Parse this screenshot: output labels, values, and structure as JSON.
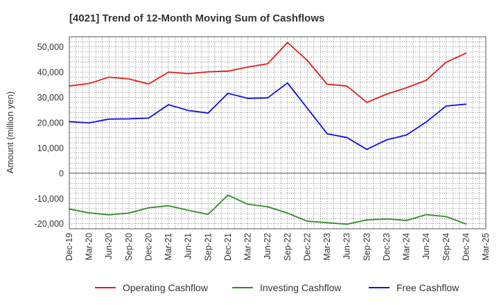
{
  "chart_data": {
    "type": "line",
    "title": "[4021]  Trend of 12-Month Moving Sum of Cashflows",
    "xlabel": "",
    "ylabel": "Amount (million yen)",
    "ylim": [
      -22000,
      54000
    ],
    "yticks": [
      -20000,
      -10000,
      0,
      10000,
      20000,
      30000,
      40000,
      50000
    ],
    "ytick_labels": [
      "-20,000",
      "-10,000",
      "0",
      "10,000",
      "20,000",
      "30,000",
      "40,000",
      "50,000"
    ],
    "x_tick_labels": [
      "Dec-19",
      "Mar-20",
      "Jun-20",
      "Sep-20",
      "Dec-20",
      "Mar-21",
      "Jun-21",
      "Sep-21",
      "Dec-21",
      "Mar-22",
      "Jun-22",
      "Sep-22",
      "Dec-22",
      "Mar-23",
      "Jun-23",
      "Sep-23",
      "Dec-23",
      "Mar-24",
      "Jun-24",
      "Sep-24",
      "Dec-24",
      "Mar-25"
    ],
    "x": [
      "Dec-19",
      "Mar-20",
      "Jun-20",
      "Sep-20",
      "Dec-20",
      "Mar-21",
      "Jun-21",
      "Sep-21",
      "Dec-21",
      "Mar-22",
      "Jun-22",
      "Sep-22",
      "Dec-22",
      "Mar-23",
      "Jun-23",
      "Sep-23",
      "Dec-23",
      "Mar-24",
      "Jun-24",
      "Sep-24",
      "Dec-24"
    ],
    "grid": true,
    "legend_position": "bottom",
    "series": [
      {
        "name": "Operating Cashflow",
        "color": "#e31a1c",
        "values": [
          34500,
          35500,
          38000,
          37300,
          35300,
          40000,
          39400,
          40100,
          40400,
          42000,
          43300,
          51700,
          44600,
          35200,
          34500,
          28000,
          31300,
          33800,
          36800,
          43900,
          47500
        ]
      },
      {
        "name": "Investing Cashflow",
        "color": "#2e8b22",
        "values": [
          -14200,
          -15700,
          -16500,
          -15800,
          -13700,
          -12900,
          -14700,
          -16300,
          -8700,
          -12300,
          -13300,
          -15800,
          -19000,
          -19600,
          -20200,
          -18500,
          -18100,
          -18700,
          -16400,
          -17200,
          -20100
        ]
      },
      {
        "name": "Free Cashflow",
        "color": "#1010e0",
        "values": [
          20400,
          19900,
          21400,
          21500,
          21800,
          27100,
          24800,
          23800,
          31600,
          29600,
          29800,
          35700,
          25700,
          15600,
          14100,
          9400,
          13200,
          15100,
          20300,
          26600,
          27300
        ]
      }
    ]
  }
}
